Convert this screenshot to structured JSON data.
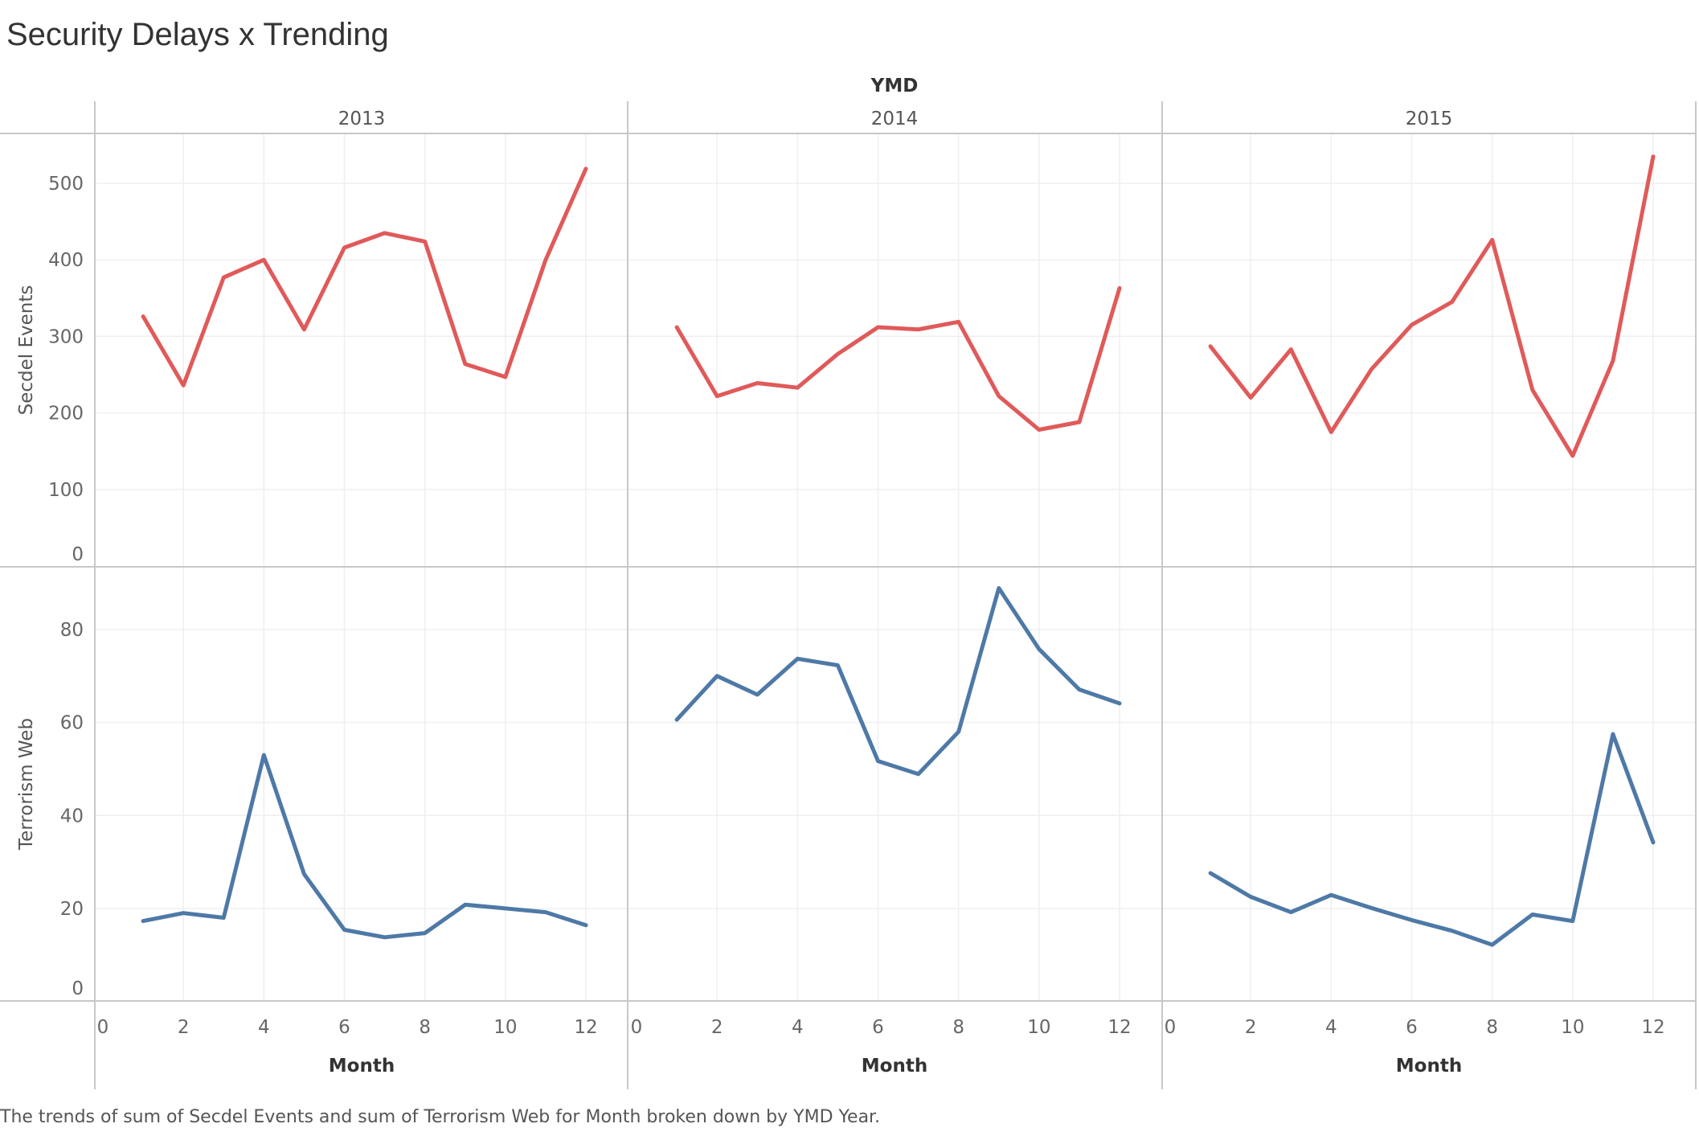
{
  "title": "Security Delays x Trending",
  "caption": "The trends of sum of Secdel Events and sum of Terrorism Web for Month broken down by YMD Year.",
  "chart_data": {
    "type": "line",
    "column_header": "YMD",
    "panels": [
      "2013",
      "2014",
      "2015"
    ],
    "xlabel": "Month",
    "xlim": [
      0,
      12.5
    ],
    "xticks": [
      0,
      2,
      4,
      6,
      8,
      10,
      12
    ],
    "x": [
      1,
      2,
      3,
      4,
      5,
      6,
      7,
      8,
      9,
      10,
      11,
      12
    ],
    "grid": true,
    "rows": [
      {
        "ylabel": "Secdel Events",
        "color": "#e05a5a",
        "ylim": [
          0,
          560
        ],
        "yticks": [
          0,
          100,
          200,
          300,
          400,
          500
        ],
        "series": [
          [
            326,
            236,
            377,
            400,
            309,
            416,
            435,
            424,
            264,
            247,
            400,
            519
          ],
          [
            312,
            222,
            239,
            233,
            277,
            312,
            309,
            319,
            222,
            178,
            188,
            363
          ],
          [
            287,
            220,
            283,
            175,
            257,
            315,
            345,
            426,
            230,
            144,
            268,
            535
          ]
        ]
      },
      {
        "ylabel": "Terrorism Web",
        "color": "#4e79a7",
        "ylim": [
          0,
          92
        ],
        "yticks": [
          0,
          20,
          40,
          60,
          80
        ],
        "series": [
          [
            17.3,
            19,
            18,
            53,
            27.4,
            15.4,
            13.8,
            14.7,
            20.8,
            20,
            19.2,
            16.4
          ],
          [
            60.6,
            70,
            66,
            73.7,
            72.3,
            51.7,
            48.9,
            58,
            88.9,
            75.8,
            67.1,
            64.1
          ],
          [
            27.6,
            22.5,
            19.2,
            22.9,
            20.1,
            17.5,
            15.2,
            12.2,
            18.7,
            17.3,
            57.5,
            34.2
          ]
        ]
      }
    ]
  }
}
